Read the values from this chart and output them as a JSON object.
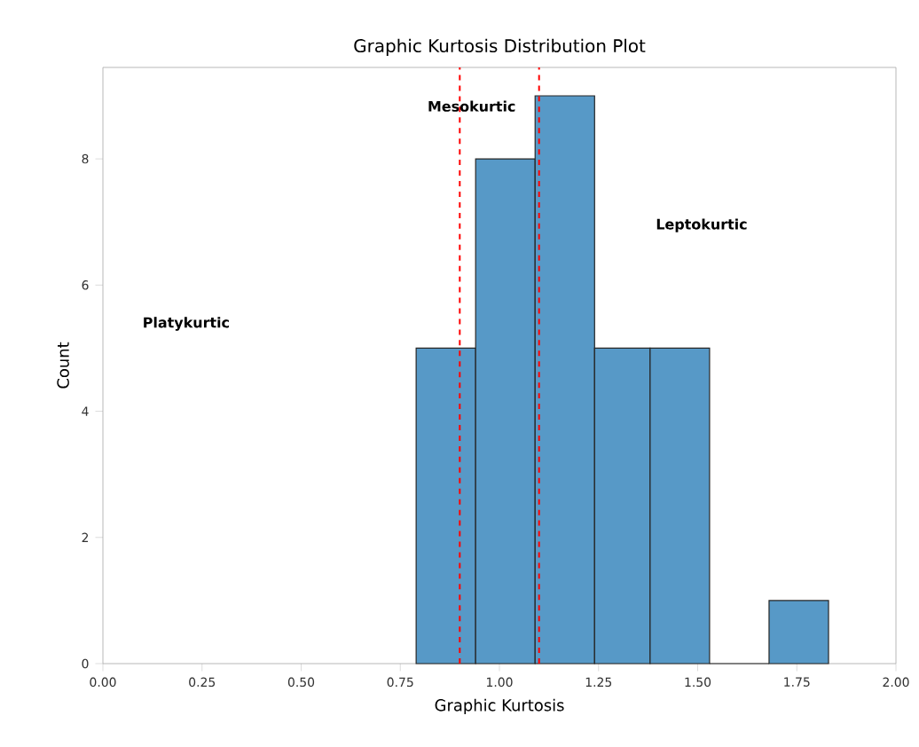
{
  "chart_data": {
    "type": "histogram",
    "title": "Graphic Kurtosis Distribution Plot",
    "xlabel": "Graphic Kurtosis",
    "ylabel": "Count",
    "bins": [
      0.79,
      0.94,
      1.09,
      1.24,
      1.38,
      1.53,
      1.68,
      1.83
    ],
    "values": [
      5,
      8,
      9,
      5,
      5,
      0,
      1
    ],
    "color": "#5799c7",
    "xlim": [
      0,
      2
    ],
    "ylim": [
      0,
      9.45
    ],
    "xticks": [
      {
        "value": 0,
        "label": "0.00"
      },
      {
        "value": 0.25,
        "label": "0.25"
      },
      {
        "value": 0.5,
        "label": "0.50"
      },
      {
        "value": 0.75,
        "label": "0.75"
      },
      {
        "value": 1,
        "label": "1.00"
      },
      {
        "value": 1.25,
        "label": "1.25"
      },
      {
        "value": 1.5,
        "label": "1.50"
      },
      {
        "value": 1.75,
        "label": "1.75"
      },
      {
        "value": 2,
        "label": "2.00"
      }
    ],
    "yticks": [
      0,
      2,
      4,
      6,
      8
    ],
    "ref_lines": [
      {
        "axis": "x",
        "value": 0.9,
        "color": "#ff0000",
        "line_style": "dashed"
      },
      {
        "axis": "x",
        "value": 1.1,
        "color": "#ff0000",
        "line_style": "dashed"
      }
    ],
    "annotations": [
      "Platykurtic",
      "Mesokurtic",
      "Leptokurtic"
    ],
    "grid": false
  }
}
